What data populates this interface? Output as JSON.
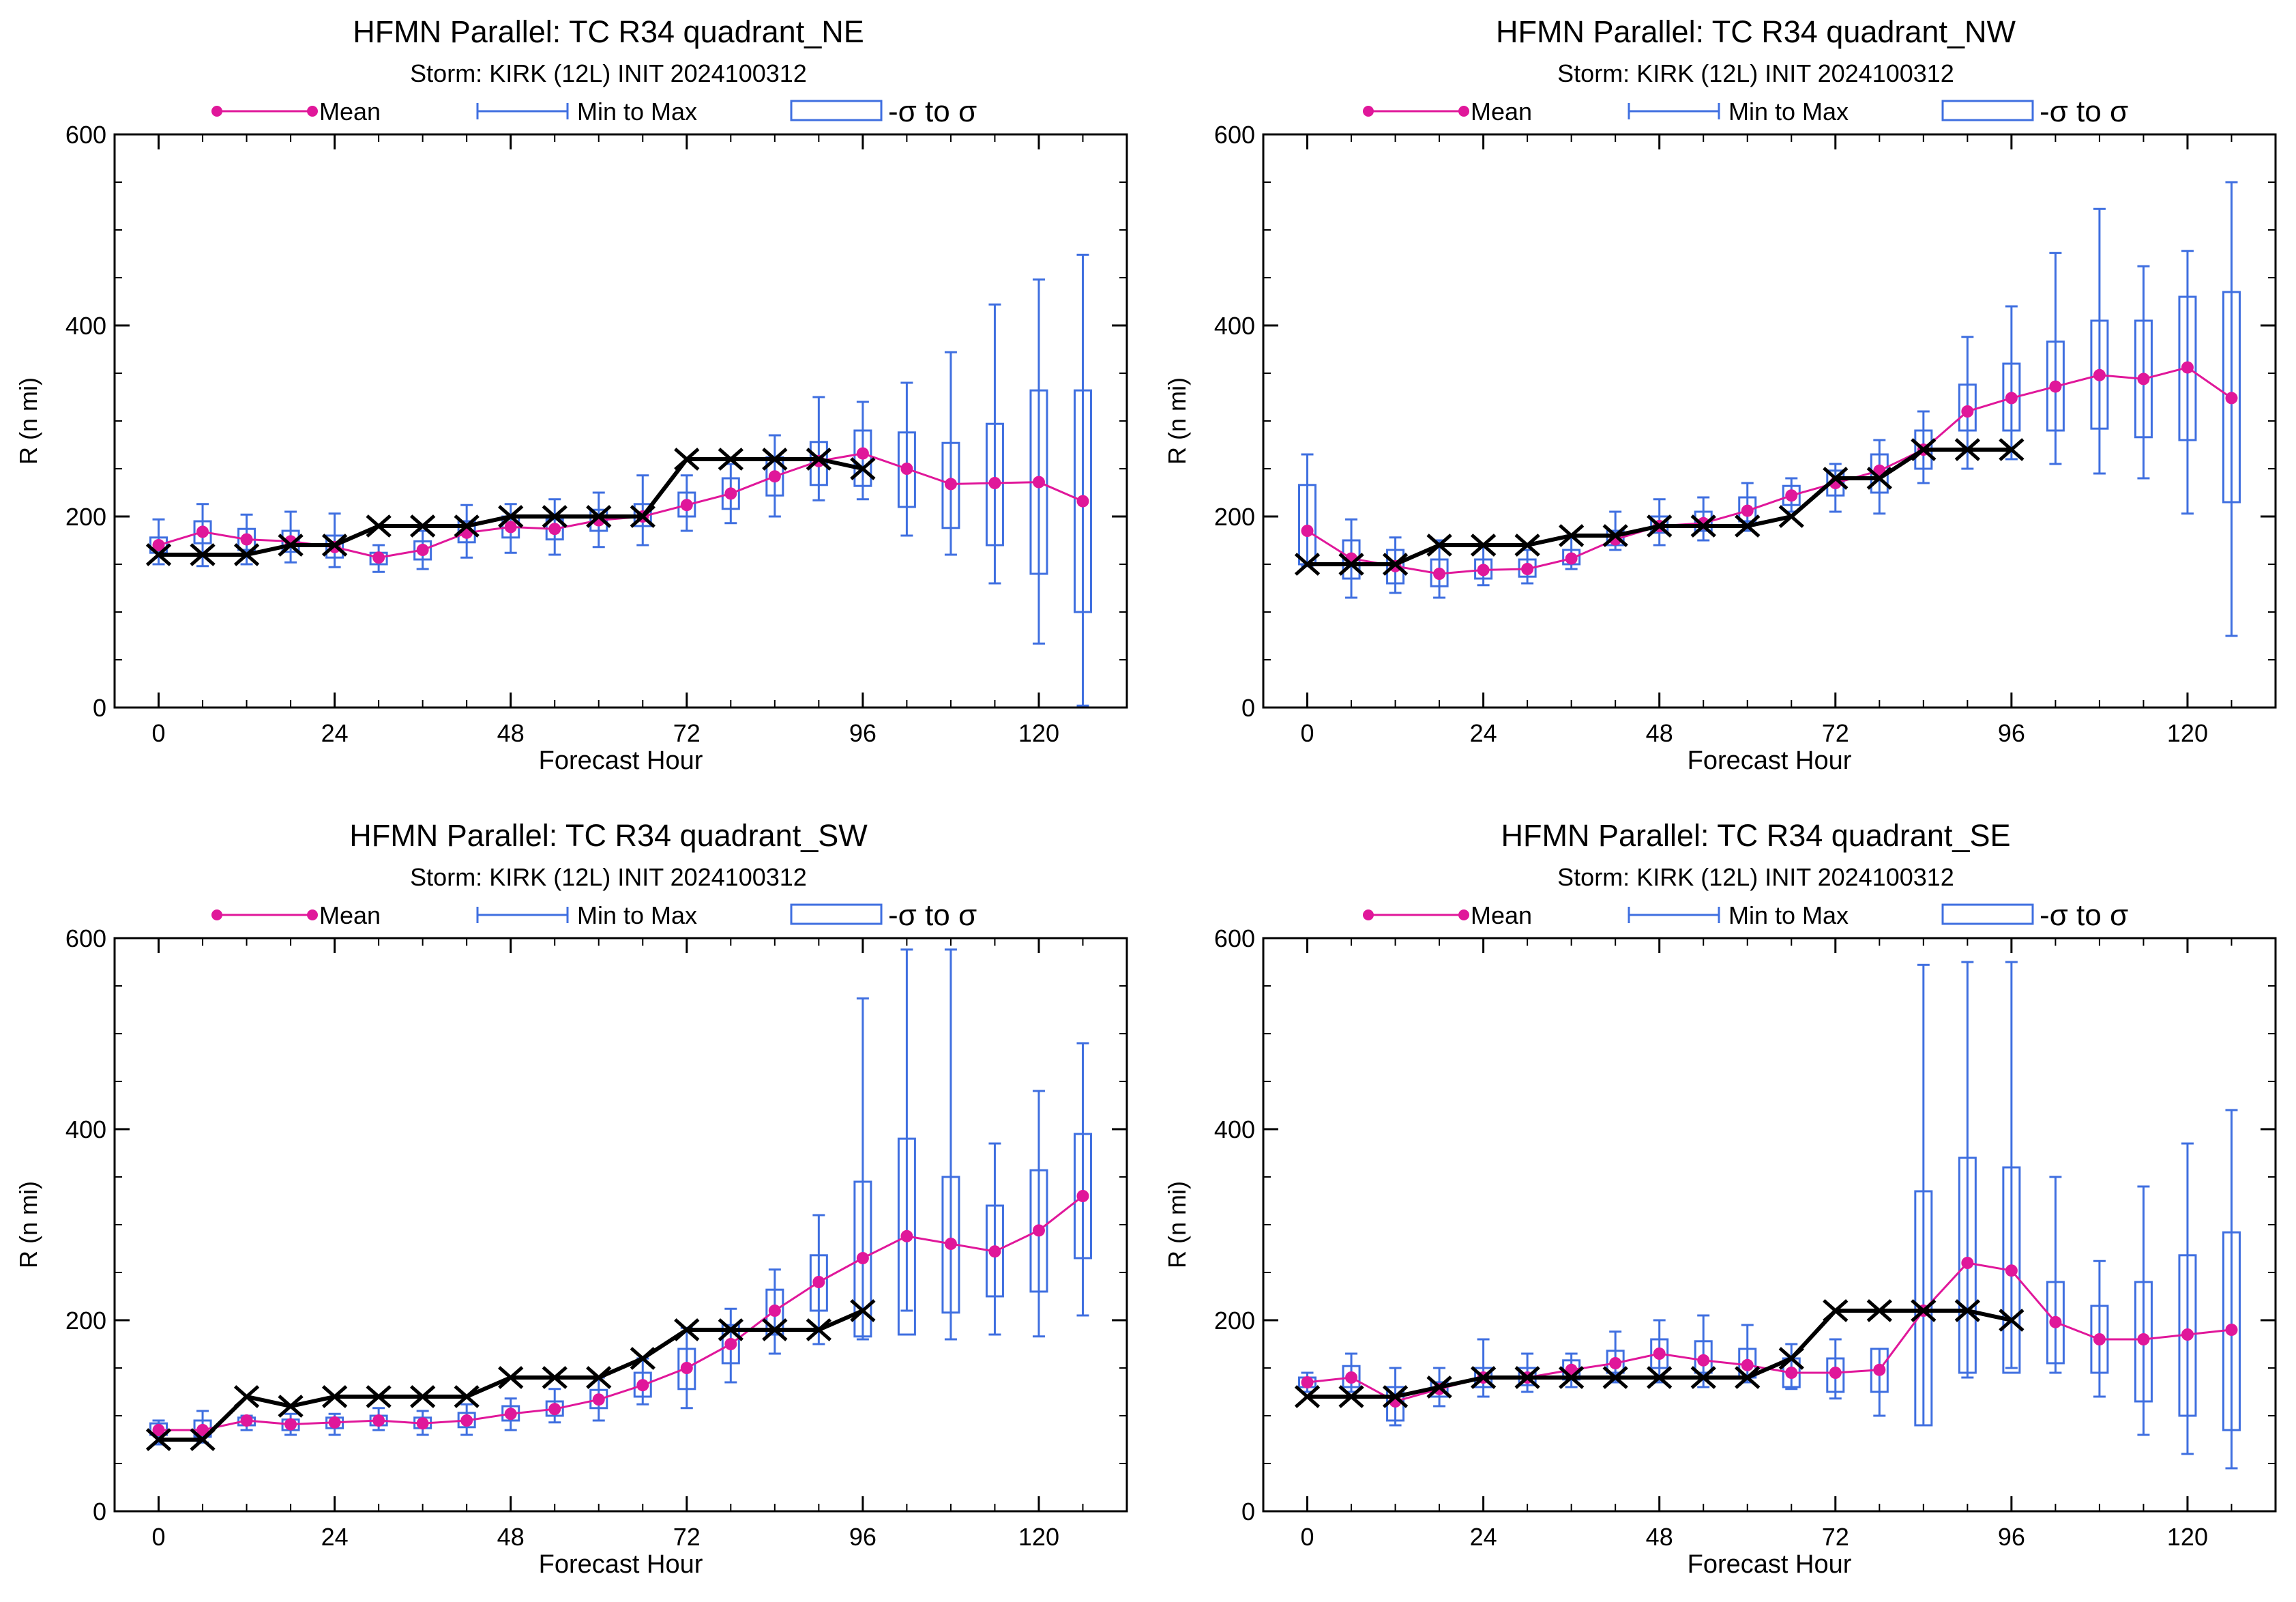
{
  "colors": {
    "mean": "#e0179a",
    "range": "#3f6fe0",
    "truth": "#000000",
    "axis": "#000000"
  },
  "legend": {
    "mean": "Mean",
    "range": "Min to Max",
    "sigma": "-σ to σ"
  },
  "chart_data": [
    {
      "type": "box",
      "title": "HFMN Parallel: TC  R34 quadrant_NE",
      "subtitle": "Storm: KIRK (12L) INIT 2024100312",
      "xlabel": "Forecast Hour",
      "ylabel": "R (n mi)",
      "xlim": [
        -6,
        132
      ],
      "ylim": [
        0,
        600
      ],
      "xticks": [
        0,
        24,
        48,
        72,
        96,
        120
      ],
      "yticks": [
        0,
        200,
        400,
        600
      ],
      "hours": [
        0,
        6,
        12,
        18,
        24,
        30,
        36,
        42,
        48,
        54,
        60,
        66,
        72,
        78,
        84,
        90,
        96,
        102,
        108,
        114,
        120,
        126
      ],
      "mean": [
        170,
        184,
        176,
        174,
        168,
        157,
        165,
        183,
        189,
        187,
        196,
        200,
        212,
        224,
        242,
        258,
        266,
        250,
        234,
        235,
        236,
        216
      ],
      "min": [
        150,
        148,
        150,
        152,
        147,
        142,
        145,
        157,
        162,
        160,
        168,
        170,
        185,
        193,
        200,
        217,
        218,
        180,
        160,
        130,
        67,
        2
      ],
      "max": [
        197,
        213,
        202,
        205,
        203,
        170,
        185,
        212,
        213,
        218,
        225,
        243,
        243,
        255,
        285,
        325,
        320,
        340,
        372,
        422,
        448,
        474
      ],
      "sigma_low": [
        162,
        172,
        165,
        163,
        157,
        150,
        155,
        173,
        178,
        176,
        185,
        190,
        200,
        208,
        222,
        233,
        232,
        210,
        188,
        170,
        140,
        100
      ],
      "sigma_high": [
        178,
        195,
        187,
        185,
        180,
        162,
        174,
        195,
        200,
        197,
        207,
        213,
        225,
        240,
        262,
        278,
        290,
        288,
        277,
        297,
        332,
        332
      ],
      "truth_hours": [
        0,
        6,
        12,
        18,
        24,
        30,
        36,
        42,
        48,
        54,
        60,
        66,
        72,
        78,
        84,
        90,
        96
      ],
      "truth": [
        160,
        160,
        160,
        170,
        170,
        190,
        190,
        190,
        200,
        200,
        200,
        200,
        260,
        260,
        260,
        260,
        250
      ]
    },
    {
      "type": "box",
      "title": "HFMN Parallel: TC  R34 quadrant_NW",
      "subtitle": "Storm: KIRK (12L) INIT 2024100312",
      "xlabel": "Forecast Hour",
      "ylabel": "R (n mi)",
      "xlim": [
        -6,
        132
      ],
      "ylim": [
        0,
        600
      ],
      "xticks": [
        0,
        24,
        48,
        72,
        96,
        120
      ],
      "yticks": [
        0,
        200,
        400,
        600
      ],
      "hours": [
        0,
        6,
        12,
        18,
        24,
        30,
        36,
        42,
        48,
        54,
        60,
        66,
        72,
        78,
        84,
        90,
        96,
        102,
        108,
        114,
        120,
        126
      ],
      "mean": [
        185,
        156,
        148,
        140,
        144,
        145,
        156,
        176,
        190,
        193,
        206,
        222,
        235,
        248,
        270,
        310,
        324,
        336,
        348,
        344,
        356,
        324
      ],
      "min": [
        148,
        115,
        120,
        115,
        128,
        130,
        145,
        165,
        170,
        175,
        185,
        205,
        205,
        203,
        235,
        250,
        260,
        255,
        245,
        240,
        203,
        75
      ],
      "max": [
        265,
        197,
        178,
        175,
        170,
        165,
        180,
        205,
        218,
        220,
        235,
        240,
        255,
        280,
        310,
        388,
        420,
        476,
        522,
        462,
        478,
        550
      ],
      "sigma_low": [
        150,
        135,
        130,
        127,
        135,
        137,
        150,
        170,
        183,
        185,
        195,
        212,
        222,
        225,
        250,
        290,
        290,
        290,
        292,
        283,
        280,
        215
      ],
      "sigma_high": [
        233,
        175,
        165,
        155,
        155,
        155,
        165,
        185,
        200,
        205,
        220,
        232,
        248,
        265,
        290,
        338,
        360,
        383,
        405,
        405,
        430,
        435
      ],
      "truth_hours": [
        0,
        6,
        12,
        18,
        24,
        30,
        36,
        42,
        48,
        54,
        60,
        66,
        72,
        78,
        84,
        90,
        96
      ],
      "truth": [
        150,
        150,
        150,
        170,
        170,
        170,
        180,
        180,
        190,
        190,
        190,
        200,
        240,
        240,
        270,
        270,
        270
      ]
    },
    {
      "type": "box",
      "title": "HFMN Parallel: TC  R34 quadrant_SW",
      "subtitle": "Storm: KIRK (12L) INIT 2024100312",
      "xlabel": "Forecast Hour",
      "ylabel": "R (n mi)",
      "xlim": [
        -6,
        132
      ],
      "ylim": [
        0,
        600
      ],
      "xticks": [
        0,
        24,
        48,
        72,
        96,
        120
      ],
      "yticks": [
        0,
        200,
        400,
        600
      ],
      "hours": [
        0,
        6,
        12,
        18,
        24,
        30,
        36,
        42,
        48,
        54,
        60,
        66,
        72,
        78,
        84,
        90,
        96,
        102,
        108,
        114,
        120,
        126
      ],
      "mean": [
        85,
        85,
        95,
        91,
        93,
        95,
        92,
        95,
        102,
        107,
        117,
        132,
        150,
        175,
        210,
        240,
        265,
        288,
        280,
        272,
        294,
        330
      ],
      "min": [
        70,
        72,
        85,
        80,
        80,
        85,
        80,
        80,
        85,
        93,
        95,
        112,
        108,
        135,
        165,
        175,
        180,
        210,
        180,
        185,
        183,
        205
      ],
      "max": [
        95,
        105,
        100,
        102,
        102,
        108,
        105,
        112,
        118,
        128,
        140,
        160,
        192,
        212,
        253,
        310,
        537,
        588,
        588,
        385,
        440,
        490
      ],
      "sigma_low": [
        80,
        78,
        90,
        85,
        87,
        90,
        87,
        88,
        95,
        100,
        108,
        120,
        128,
        155,
        185,
        210,
        183,
        185,
        208,
        225,
        230,
        265
      ],
      "sigma_high": [
        92,
        95,
        98,
        96,
        98,
        100,
        98,
        103,
        110,
        115,
        127,
        145,
        170,
        195,
        232,
        268,
        345,
        390,
        350,
        320,
        357,
        395
      ],
      "truth_hours": [
        0,
        6,
        12,
        18,
        24,
        30,
        36,
        42,
        48,
        54,
        60,
        66,
        72,
        78,
        84,
        90,
        96
      ],
      "truth": [
        75,
        75,
        120,
        110,
        120,
        120,
        120,
        120,
        140,
        140,
        140,
        160,
        190,
        190,
        190,
        190,
        210
      ]
    },
    {
      "type": "box",
      "title": "HFMN Parallel: TC  R34 quadrant_SE",
      "subtitle": "Storm: KIRK (12L) INIT 2024100312",
      "xlabel": "Forecast Hour",
      "ylabel": "R (n mi)",
      "xlim": [
        -6,
        132
      ],
      "ylim": [
        0,
        600
      ],
      "xticks": [
        0,
        24,
        48,
        72,
        96,
        120
      ],
      "yticks": [
        0,
        200,
        400,
        600
      ],
      "hours": [
        0,
        6,
        12,
        18,
        24,
        30,
        36,
        42,
        48,
        54,
        60,
        66,
        72,
        78,
        84,
        90,
        96,
        102,
        108,
        114,
        120,
        126
      ],
      "mean": [
        135,
        140,
        115,
        128,
        140,
        140,
        148,
        155,
        165,
        158,
        153,
        145,
        145,
        148,
        210,
        260,
        252,
        198,
        180,
        180,
        185,
        190
      ],
      "min": [
        125,
        125,
        90,
        110,
        120,
        125,
        130,
        135,
        135,
        130,
        135,
        128,
        118,
        100,
        90,
        140,
        150,
        145,
        120,
        80,
        60,
        45
      ],
      "max": [
        145,
        165,
        150,
        150,
        180,
        165,
        165,
        188,
        200,
        205,
        195,
        175,
        180,
        170,
        572,
        575,
        575,
        350,
        262,
        340,
        385,
        420
      ],
      "sigma_low": [
        130,
        130,
        95,
        120,
        130,
        132,
        138,
        145,
        150,
        145,
        140,
        130,
        125,
        125,
        90,
        145,
        145,
        155,
        145,
        115,
        100,
        85
      ],
      "sigma_high": [
        140,
        152,
        130,
        135,
        150,
        150,
        158,
        168,
        180,
        178,
        170,
        160,
        160,
        170,
        335,
        370,
        360,
        240,
        215,
        240,
        268,
        292
      ],
      "truth_hours": [
        0,
        6,
        12,
        18,
        24,
        30,
        36,
        42,
        48,
        54,
        60,
        66,
        72,
        78,
        84,
        90,
        96
      ],
      "truth": [
        120,
        120,
        120,
        130,
        140,
        140,
        140,
        140,
        140,
        140,
        140,
        160,
        210,
        210,
        210,
        210,
        200
      ]
    }
  ]
}
